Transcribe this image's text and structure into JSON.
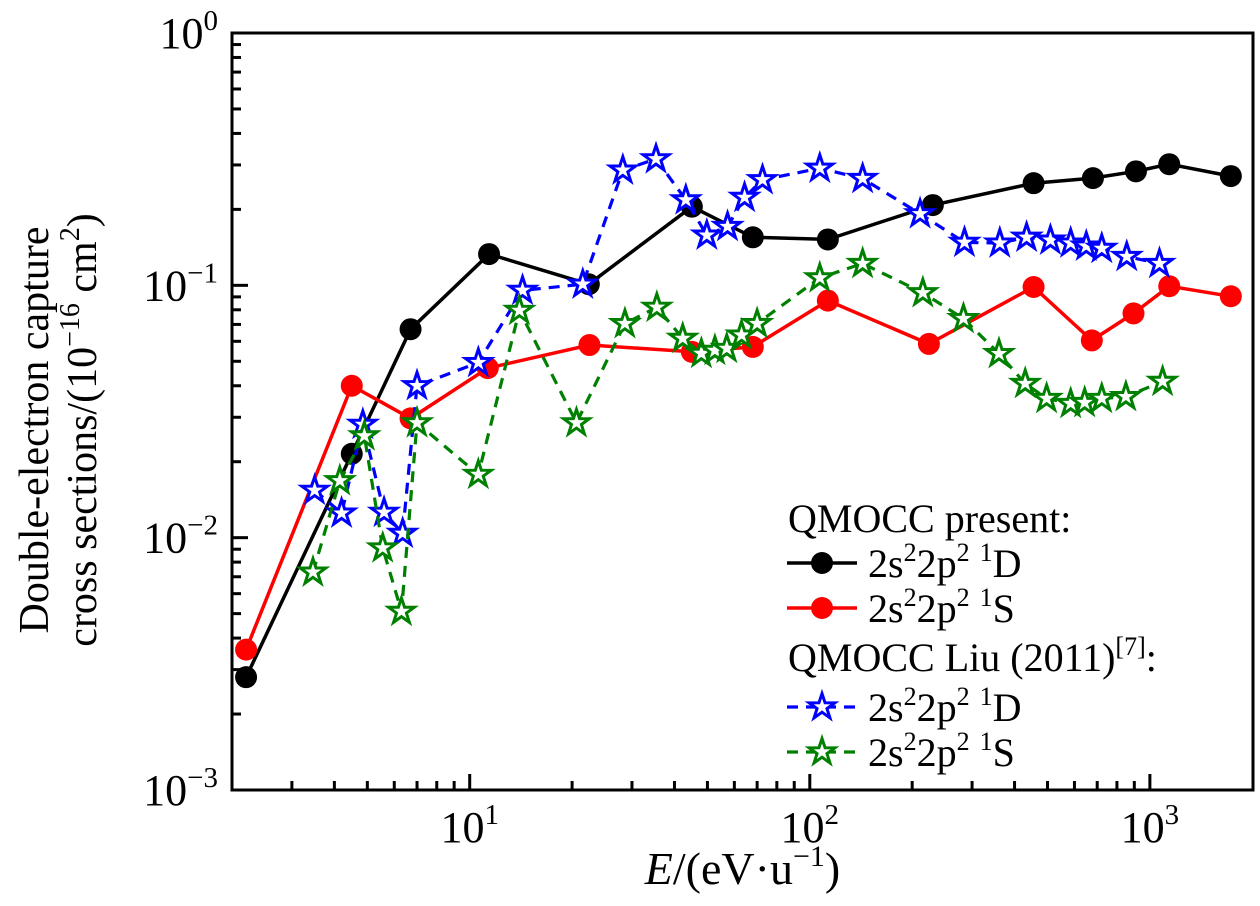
{
  "figure_title": "",
  "axes": {
    "x": {
      "scale": "log",
      "min": 2,
      "max": 2010,
      "label_plain": "E/(eV·u⁻¹)",
      "label_segments": [
        {
          "t": "E",
          "italic": true
        },
        {
          "t": "/(eV·u"
        },
        {
          "t": "−1",
          "sup": true
        },
        {
          "t": ")"
        }
      ],
      "major_ticks": [
        {
          "value": 10,
          "exp": "1"
        },
        {
          "value": 100,
          "exp": "2"
        },
        {
          "value": 1000,
          "exp": "3"
        }
      ]
    },
    "y": {
      "scale": "log",
      "min": 0.001,
      "max": 1,
      "label_plain": "Double-electron capture cross sections/(10⁻¹⁶ cm²)",
      "label_line1": "Double-electron capture",
      "label_line2_segments": [
        {
          "t": "cross sections/(10"
        },
        {
          "t": "−16",
          "sup": true
        },
        {
          "t": " cm",
          "nbsp": true
        },
        {
          "t": "2",
          "sup": true
        },
        {
          "t": ")"
        }
      ],
      "major_ticks": [
        {
          "value": 1,
          "exp": "0"
        },
        {
          "value": 0.1,
          "exp": "−1"
        },
        {
          "value": 0.01,
          "exp": "−2"
        },
        {
          "value": 0.001,
          "exp": "−3"
        }
      ]
    }
  },
  "legend": {
    "items": [
      {
        "kind": "header",
        "text_plain": "QMOCC present:",
        "segments": [
          {
            "t": "QMOCC present:"
          }
        ]
      },
      {
        "kind": "entry",
        "series": "present-1D",
        "text_plain": "2s²2p² ¹D",
        "segments": [
          {
            "t": "2s"
          },
          {
            "t": "2",
            "sup": true
          },
          {
            "t": "2p"
          },
          {
            "t": "2",
            "sup": true
          },
          {
            "t": " "
          },
          {
            "t": "1",
            "sup": true
          },
          {
            "t": "D"
          }
        ]
      },
      {
        "kind": "entry",
        "series": "present-1S",
        "text_plain": "2s²2p² ¹S",
        "segments": [
          {
            "t": "2s"
          },
          {
            "t": "2",
            "sup": true
          },
          {
            "t": "2p"
          },
          {
            "t": "2",
            "sup": true
          },
          {
            "t": " "
          },
          {
            "t": "1",
            "sup": true
          },
          {
            "t": "S"
          }
        ]
      },
      {
        "kind": "header",
        "text_plain": "QMOCC Liu (2011)[7]:",
        "segments": [
          {
            "t": "QMOCC Liu (2011)"
          },
          {
            "t": "[7]",
            "sup": true
          },
          {
            "t": ":"
          }
        ]
      },
      {
        "kind": "entry",
        "series": "liu-1D",
        "text_plain": "2s²2p² ¹D",
        "segments": [
          {
            "t": "2s"
          },
          {
            "t": "2",
            "sup": true
          },
          {
            "t": "2p"
          },
          {
            "t": "2",
            "sup": true
          },
          {
            "t": " "
          },
          {
            "t": "1",
            "sup": true
          },
          {
            "t": "D"
          }
        ]
      },
      {
        "kind": "entry",
        "series": "liu-1S",
        "text_plain": "2s²2p² ¹S",
        "segments": [
          {
            "t": "2s"
          },
          {
            "t": "2",
            "sup": true
          },
          {
            "t": "2p"
          },
          {
            "t": "2",
            "sup": true
          },
          {
            "t": " "
          },
          {
            "t": "1",
            "sup": true
          },
          {
            "t": "S"
          }
        ]
      }
    ]
  },
  "chart_data": {
    "type": "line",
    "title": "",
    "xlabel": "E/(eV·u⁻¹)",
    "ylabel": "Double-electron capture cross sections/(10⁻¹⁶ cm²)",
    "x_scale": "log",
    "y_scale": "log",
    "x_range": [
      2,
      2010
    ],
    "y_range": [
      0.001,
      1
    ],
    "grid": false,
    "legend_position": "lower right",
    "series": [
      {
        "id": "present-1D",
        "name": "QMOCC present 2s²2p² ¹D",
        "color": "#000000",
        "line": "solid",
        "marker": "circle",
        "points": [
          [
            2.2,
            0.0028
          ],
          [
            4.5,
            0.0215
          ],
          [
            6.7,
            0.067
          ],
          [
            11.4,
            0.133
          ],
          [
            22.4,
            0.101
          ],
          [
            45,
            0.205
          ],
          [
            68,
            0.155
          ],
          [
            113,
            0.152
          ],
          [
            230,
            0.208
          ],
          [
            455,
            0.254
          ],
          [
            680,
            0.266
          ],
          [
            910,
            0.283
          ],
          [
            1140,
            0.302
          ],
          [
            1730,
            0.271
          ]
        ]
      },
      {
        "id": "present-1S",
        "name": "QMOCC present 2s²2p² ¹S",
        "color": "#ff0000",
        "line": "solid",
        "marker": "circle",
        "points": [
          [
            2.2,
            0.0036
          ],
          [
            4.5,
            0.04
          ],
          [
            6.7,
            0.0297
          ],
          [
            11.3,
            0.047
          ],
          [
            22.5,
            0.058
          ],
          [
            45,
            0.0545
          ],
          [
            68,
            0.057
          ],
          [
            113,
            0.087
          ],
          [
            224,
            0.0586
          ],
          [
            455,
            0.0985
          ],
          [
            675,
            0.0605
          ],
          [
            895,
            0.0774
          ],
          [
            1140,
            0.0992
          ],
          [
            1730,
            0.0905
          ]
        ]
      },
      {
        "id": "liu-1D",
        "name": "QMOCC Liu (2011)[7] 2s²2p² ¹D",
        "color": "#0000ff",
        "line": "dashed",
        "marker": "star",
        "points": [
          [
            3.5,
            0.0154
          ],
          [
            4.2,
            0.0125
          ],
          [
            4.85,
            0.0281
          ],
          [
            5.6,
            0.0126
          ],
          [
            6.35,
            0.0104
          ],
          [
            7.0,
            0.04
          ],
          [
            10.6,
            0.0494
          ],
          [
            14.3,
            0.0955
          ],
          [
            21.5,
            0.101
          ],
          [
            28.2,
            0.286
          ],
          [
            35.3,
            0.317
          ],
          [
            43.2,
            0.218
          ],
          [
            49.8,
            0.158
          ],
          [
            57.3,
            0.171
          ],
          [
            64.3,
            0.223
          ],
          [
            72.6,
            0.262
          ],
          [
            107,
            0.291
          ],
          [
            143,
            0.265
          ],
          [
            211,
            0.192
          ],
          [
            285,
            0.148
          ],
          [
            362,
            0.147
          ],
          [
            434,
            0.155
          ],
          [
            510,
            0.151
          ],
          [
            585,
            0.147
          ],
          [
            650,
            0.143
          ],
          [
            722,
            0.14
          ],
          [
            855,
            0.13
          ],
          [
            1067,
            0.122
          ]
        ]
      },
      {
        "id": "liu-1S",
        "name": "QMOCC Liu (2011)[7] 2s²2p² ¹S",
        "color": "#008000",
        "line": "dashed",
        "marker": "star",
        "points": [
          [
            3.46,
            0.0073
          ],
          [
            4.15,
            0.0168
          ],
          [
            4.9,
            0.0253
          ],
          [
            5.55,
            0.0091
          ],
          [
            6.3,
            0.0051
          ],
          [
            7.0,
            0.0285
          ],
          [
            10.6,
            0.0178
          ],
          [
            14.0,
            0.0795
          ],
          [
            20.6,
            0.0285
          ],
          [
            28.6,
            0.0705
          ],
          [
            35.5,
            0.0818
          ],
          [
            42.3,
            0.0616
          ],
          [
            48,
            0.0537
          ],
          [
            52.6,
            0.0552
          ],
          [
            57,
            0.0562
          ],
          [
            63,
            0.0635
          ],
          [
            70,
            0.0705
          ],
          [
            107,
            0.107
          ],
          [
            143,
            0.122
          ],
          [
            215,
            0.0934
          ],
          [
            283,
            0.0738
          ],
          [
            360,
            0.0536
          ],
          [
            430,
            0.0408
          ],
          [
            497,
            0.0356
          ],
          [
            585,
            0.034
          ],
          [
            643,
            0.0343
          ],
          [
            722,
            0.0356
          ],
          [
            850,
            0.0362
          ],
          [
            1090,
            0.0416
          ]
        ]
      }
    ]
  }
}
